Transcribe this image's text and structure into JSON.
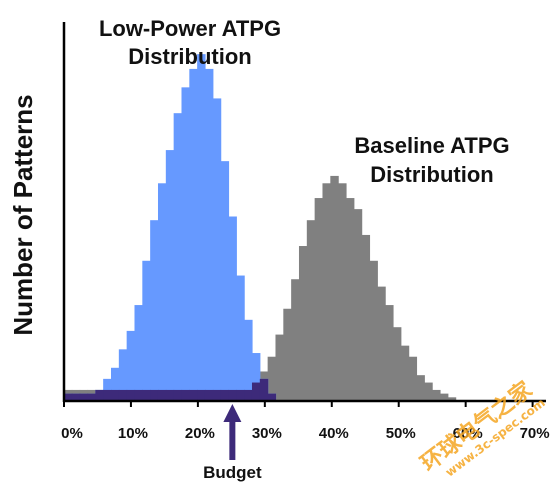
{
  "chart_data": {
    "type": "bar",
    "title": "",
    "xlabel": "",
    "ylabel": "Number of Patterns",
    "x_ticks": [
      "0%",
      "10%",
      "20%",
      "30%",
      "40%",
      "50%",
      "60%",
      "70%"
    ],
    "xlim": [
      0,
      72
    ],
    "ylim": [
      0,
      100
    ],
    "bin_width": 1.17,
    "colors": {
      "baseline": "#808080",
      "low_power": "#6699ff",
      "overlap": "#3d2a7a",
      "arrow": "#3d2a7a"
    },
    "series": [
      {
        "name": "Baseline ATPG Distribution",
        "bin_start": 0,
        "values": [
          3,
          3,
          3,
          3,
          3,
          3,
          3,
          3,
          3,
          3,
          3,
          3,
          3,
          3,
          3,
          3,
          3,
          3,
          3,
          3,
          3,
          3,
          3,
          3,
          5,
          8,
          12,
          18,
          25,
          33,
          42,
          49,
          55,
          59,
          61,
          59,
          55,
          52,
          45,
          38,
          31,
          26,
          20,
          15,
          12,
          7,
          5,
          3,
          2,
          1
        ]
      },
      {
        "name": "Low-Power ATPG Distribution",
        "bin_start": 0,
        "values": [
          2,
          2,
          2,
          2,
          3,
          6,
          9,
          14,
          19,
          26,
          38,
          49,
          59,
          68,
          78,
          85,
          90,
          94,
          90,
          82,
          65,
          50,
          34,
          22,
          13,
          6,
          2
        ]
      }
    ],
    "budget_x": 25,
    "annotations": {
      "low_power_line1": "Low-Power ATPG",
      "low_power_line2": "Distribution",
      "baseline_line1": "Baseline ATPG",
      "baseline_line2": "Distribution",
      "budget": "Budget"
    }
  },
  "watermark": {
    "line1": "环球电气之家",
    "line2": "www.3c-spec.com"
  }
}
